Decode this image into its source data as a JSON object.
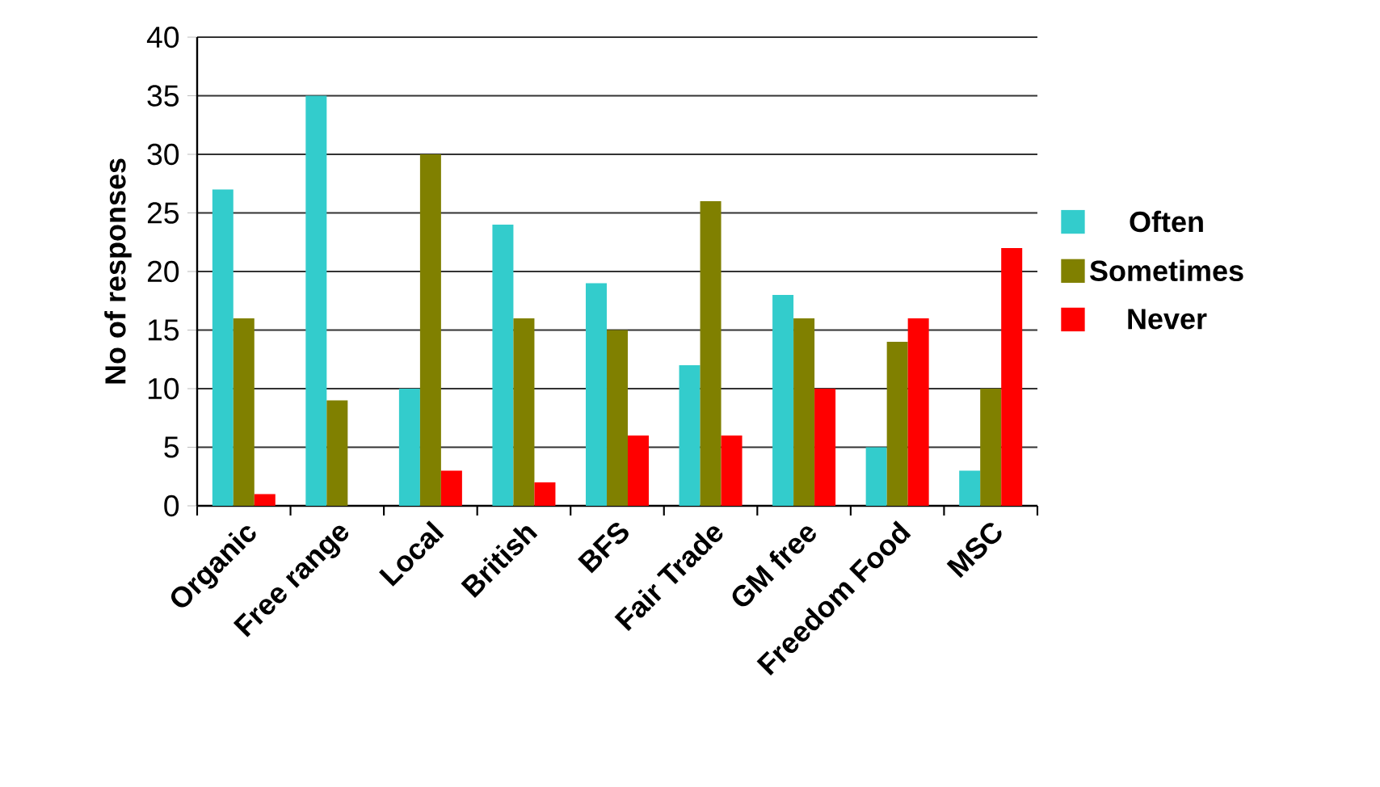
{
  "chart_data": {
    "type": "bar",
    "ylabel": "No of responses",
    "categories": [
      "Organic",
      "Free range",
      "Local",
      "British",
      "BFS",
      "Fair Trade",
      "GM free",
      "Freedom Food",
      "MSC"
    ],
    "series": [
      {
        "name": "Often",
        "color": "#33cccc",
        "values": [
          27,
          35,
          10,
          24,
          19,
          12,
          18,
          5,
          3
        ]
      },
      {
        "name": "Sometimes",
        "color": "#808000",
        "values": [
          16,
          9,
          30,
          16,
          15,
          26,
          16,
          14,
          10
        ]
      },
      {
        "name": "Never",
        "color": "#ff0000",
        "values": [
          1,
          0,
          3,
          2,
          6,
          6,
          10,
          16,
          22
        ]
      }
    ],
    "ylim": [
      0,
      40
    ],
    "yticks": [
      0,
      5,
      10,
      15,
      20,
      25,
      30,
      35,
      40
    ],
    "grid": "y",
    "legend": "right"
  }
}
